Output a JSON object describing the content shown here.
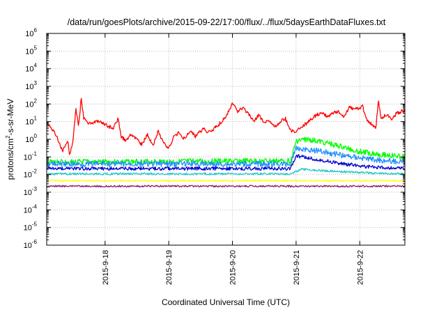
{
  "chart_data": {
    "type": "line",
    "title": "/data/run/goesPlots/archive/2015-09-22/17:00/flux/../flux/5daysEarthDataFluxes.txt",
    "xlabel": "Coordinated Universal Time (UTC)",
    "ylabel_parts": [
      "protons/cm",
      "2",
      "-s-sr-MeV"
    ],
    "y_scale": "log",
    "ylim_exp": [
      -6,
      6
    ],
    "y_tick_exponents": [
      -6,
      -5,
      -4,
      -3,
      -2,
      -1,
      0,
      1,
      2,
      3,
      4,
      5,
      6
    ],
    "y_tick_base": "10",
    "x_range_days": [
      "2015-09-17T02:00",
      "2015-09-22T17:00"
    ],
    "x_ticks": [
      "2015-9-18",
      "2015-9-19",
      "2015-9-20",
      "2015-9-21",
      "2015-9-22"
    ],
    "grid": true,
    "legend": "none",
    "series": [
      {
        "color": "#ff0000",
        "points": [
          [
            "2015-09-17T02:00",
            9
          ],
          [
            "2015-09-17T04:00",
            4
          ],
          [
            "2015-09-17T06:00",
            1.2
          ],
          [
            "2015-09-17T08:00",
            0.2
          ],
          [
            "2015-09-17T10:00",
            0.8
          ],
          [
            "2015-09-17T10:40",
            0.12
          ],
          [
            "2015-09-17T12:00",
            1.0
          ],
          [
            "2015-09-17T13:00",
            60
          ],
          [
            "2015-09-17T14:00",
            5
          ],
          [
            "2015-09-17T15:00",
            200
          ],
          [
            "2015-09-17T16:00",
            15
          ],
          [
            "2015-09-17T18:00",
            8
          ],
          [
            "2015-09-17T21:00",
            10
          ],
          [
            "2015-09-18T00:00",
            7
          ],
          [
            "2015-09-18T03:00",
            4
          ],
          [
            "2015-09-18T05:00",
            15
          ],
          [
            "2015-09-18T06:00",
            1.5
          ],
          [
            "2015-09-18T08:00",
            0.8
          ],
          [
            "2015-09-18T10:00",
            2.0
          ],
          [
            "2015-09-18T12:00",
            1.0
          ],
          [
            "2015-09-18T14:00",
            0.5
          ],
          [
            "2015-09-18T16:00",
            2.0
          ],
          [
            "2015-09-18T18:00",
            0.4
          ],
          [
            "2015-09-18T20:00",
            3.0
          ],
          [
            "2015-09-18T22:00",
            0.6
          ],
          [
            "2015-09-19T00:00",
            0.3
          ],
          [
            "2015-09-19T02:00",
            1.5
          ],
          [
            "2015-09-19T04:00",
            2.5
          ],
          [
            "2015-09-19T06:00",
            1.0
          ],
          [
            "2015-09-19T08:00",
            3.0
          ],
          [
            "2015-09-19T10:00",
            1.5
          ],
          [
            "2015-09-19T13:00",
            4.0
          ],
          [
            "2015-09-19T15:00",
            2.5
          ],
          [
            "2015-09-19T18:00",
            5.0
          ],
          [
            "2015-09-19T21:00",
            15
          ],
          [
            "2015-09-20T00:00",
            100
          ],
          [
            "2015-09-20T02:00",
            40
          ],
          [
            "2015-09-20T04:00",
            60
          ],
          [
            "2015-09-20T06:00",
            30
          ],
          [
            "2015-09-20T08:00",
            10
          ],
          [
            "2015-09-20T10:00",
            25
          ],
          [
            "2015-09-20T12:00",
            8
          ],
          [
            "2015-09-20T14:00",
            12
          ],
          [
            "2015-09-20T16:00",
            5
          ],
          [
            "2015-09-20T18:00",
            10
          ],
          [
            "2015-09-20T20:00",
            15
          ],
          [
            "2015-09-20T21:00",
            6
          ],
          [
            "2015-09-20T22:00",
            3.0
          ],
          [
            "2015-09-21T00:00",
            3.0
          ],
          [
            "2015-09-21T02:00",
            5
          ],
          [
            "2015-09-21T04:00",
            8
          ],
          [
            "2015-09-21T06:00",
            15
          ],
          [
            "2015-09-21T08:00",
            25
          ],
          [
            "2015-09-21T10:00",
            30
          ],
          [
            "2015-09-21T12:00",
            20
          ],
          [
            "2015-09-21T14:00",
            30
          ],
          [
            "2015-09-21T16:00",
            40
          ],
          [
            "2015-09-21T18:00",
            20
          ],
          [
            "2015-09-21T20:00",
            60
          ],
          [
            "2015-09-22T00:00",
            50
          ],
          [
            "2015-09-22T01:00",
            90
          ],
          [
            "2015-09-22T02:00",
            20
          ],
          [
            "2015-09-22T04:00",
            8
          ],
          [
            "2015-09-22T06:00",
            4
          ],
          [
            "2015-09-22T07:00",
            150
          ],
          [
            "2015-09-22T08:00",
            15
          ],
          [
            "2015-09-22T10:00",
            25
          ],
          [
            "2015-09-22T12:00",
            15
          ],
          [
            "2015-09-22T14:00",
            30
          ],
          [
            "2015-09-22T16:00",
            40
          ],
          [
            "2015-09-22T17:00",
            40
          ]
        ]
      },
      {
        "color": "#00ff00",
        "points": [
          [
            "2015-09-17T02:00",
            0.05
          ],
          [
            "2015-09-20T20:00",
            0.06
          ],
          [
            "2015-09-20T22:00",
            0.06
          ],
          [
            "2015-09-21T00:00",
            0.8
          ],
          [
            "2015-09-21T04:00",
            1.0
          ],
          [
            "2015-09-21T12:00",
            0.6
          ],
          [
            "2015-09-22T00:00",
            0.2
          ],
          [
            "2015-09-22T12:00",
            0.12
          ],
          [
            "2015-09-22T17:00",
            0.1
          ]
        ]
      },
      {
        "color": "#1e90ff",
        "points": [
          [
            "2015-09-17T02:00",
            0.04
          ],
          [
            "2015-09-20T20:00",
            0.04
          ],
          [
            "2015-09-20T22:00",
            0.04
          ],
          [
            "2015-09-21T00:00",
            0.3
          ],
          [
            "2015-09-21T06:00",
            0.25
          ],
          [
            "2015-09-21T18:00",
            0.12
          ],
          [
            "2015-09-22T06:00",
            0.07
          ],
          [
            "2015-09-22T17:00",
            0.05
          ]
        ]
      },
      {
        "color": "#0000cd",
        "points": [
          [
            "2015-09-17T02:00",
            0.022
          ],
          [
            "2015-09-20T20:00",
            0.022
          ],
          [
            "2015-09-20T22:00",
            0.022
          ],
          [
            "2015-09-21T00:00",
            0.12
          ],
          [
            "2015-09-21T06:00",
            0.08
          ],
          [
            "2015-09-21T18:00",
            0.04
          ],
          [
            "2015-09-22T06:00",
            0.025
          ],
          [
            "2015-09-22T17:00",
            0.022
          ]
        ]
      },
      {
        "color": "#20c8c8",
        "points": [
          [
            "2015-09-17T02:00",
            0.011
          ],
          [
            "2015-09-20T22:00",
            0.011
          ],
          [
            "2015-09-21T02:00",
            0.02
          ],
          [
            "2015-09-21T12:00",
            0.016
          ],
          [
            "2015-09-22T06:00",
            0.012
          ],
          [
            "2015-09-22T17:00",
            0.011
          ]
        ]
      },
      {
        "color": "#ffff00",
        "points": [
          [
            "2015-09-17T02:00",
            0.0045
          ],
          [
            "2015-09-22T17:00",
            0.0045
          ]
        ]
      },
      {
        "color": "#8b1a6b",
        "points": [
          [
            "2015-09-17T02:00",
            0.0022
          ],
          [
            "2015-09-22T17:00",
            0.0022
          ]
        ]
      }
    ]
  }
}
